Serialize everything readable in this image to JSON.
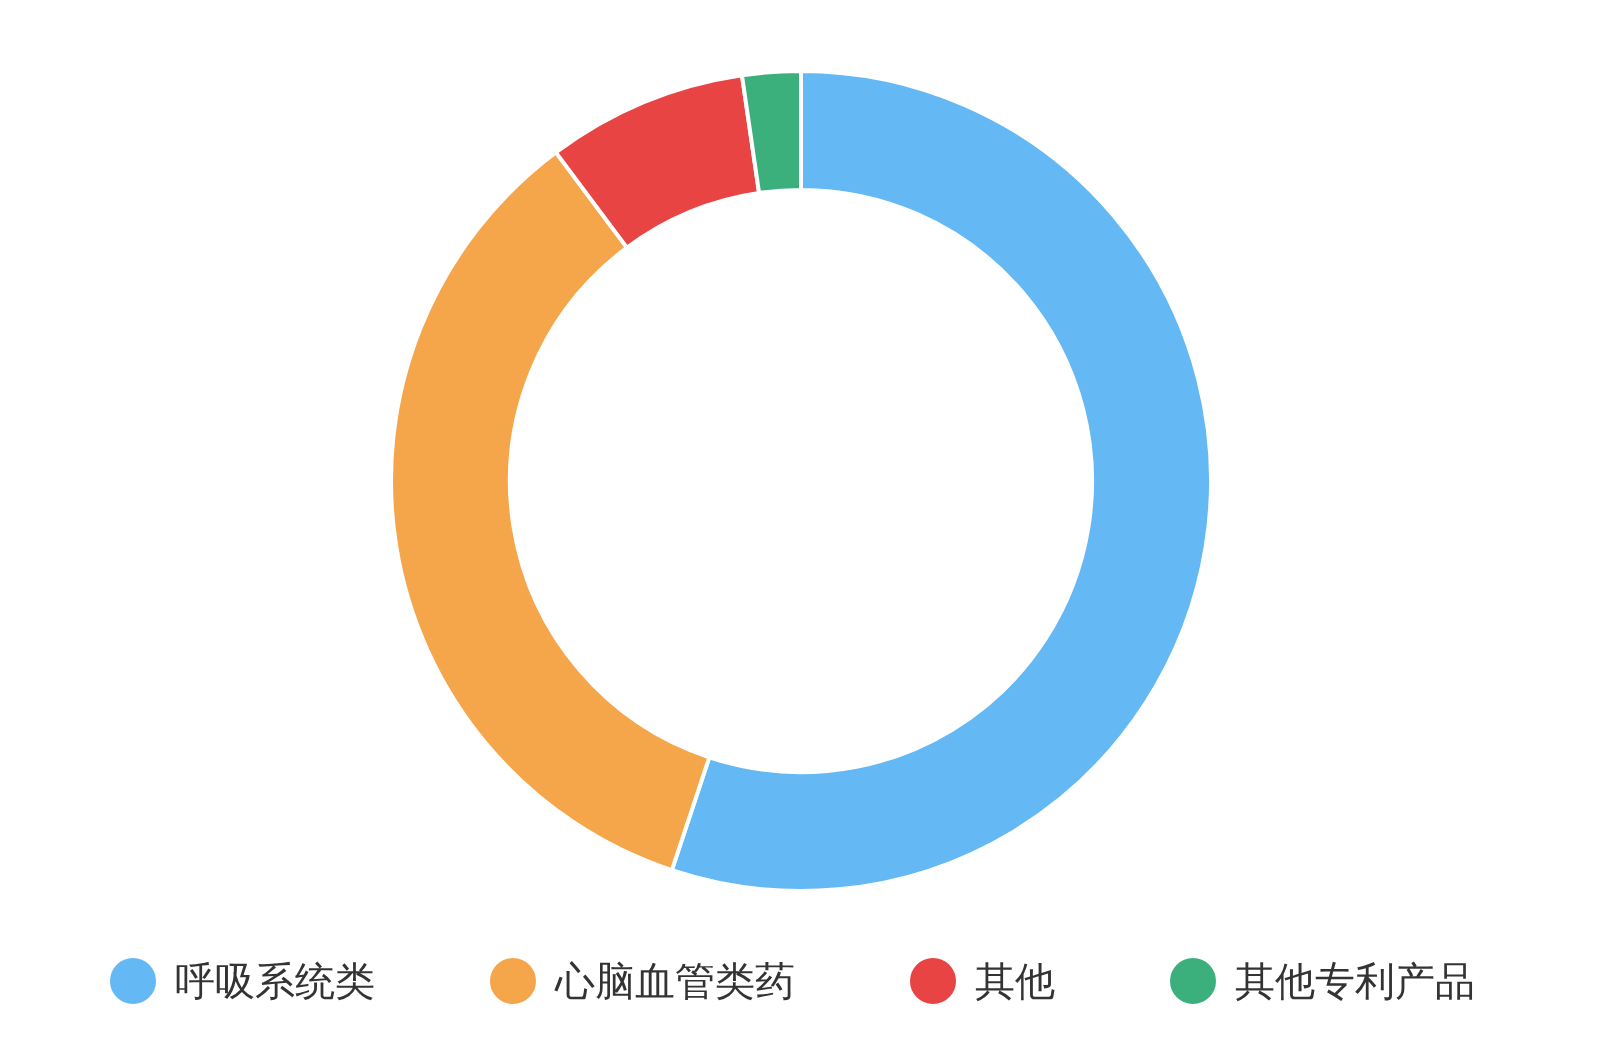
{
  "chart_data": {
    "type": "donut",
    "categories": [
      "呼吸系统类",
      "心脑血管类药",
      "其他",
      "其他专利产品"
    ],
    "values": [
      55.1,
      34.7,
      7.9,
      2.3
    ],
    "colors": [
      "#64b8f4",
      "#f5a54a",
      "#e84444",
      "#3cb07c"
    ],
    "legend": "bottom"
  }
}
